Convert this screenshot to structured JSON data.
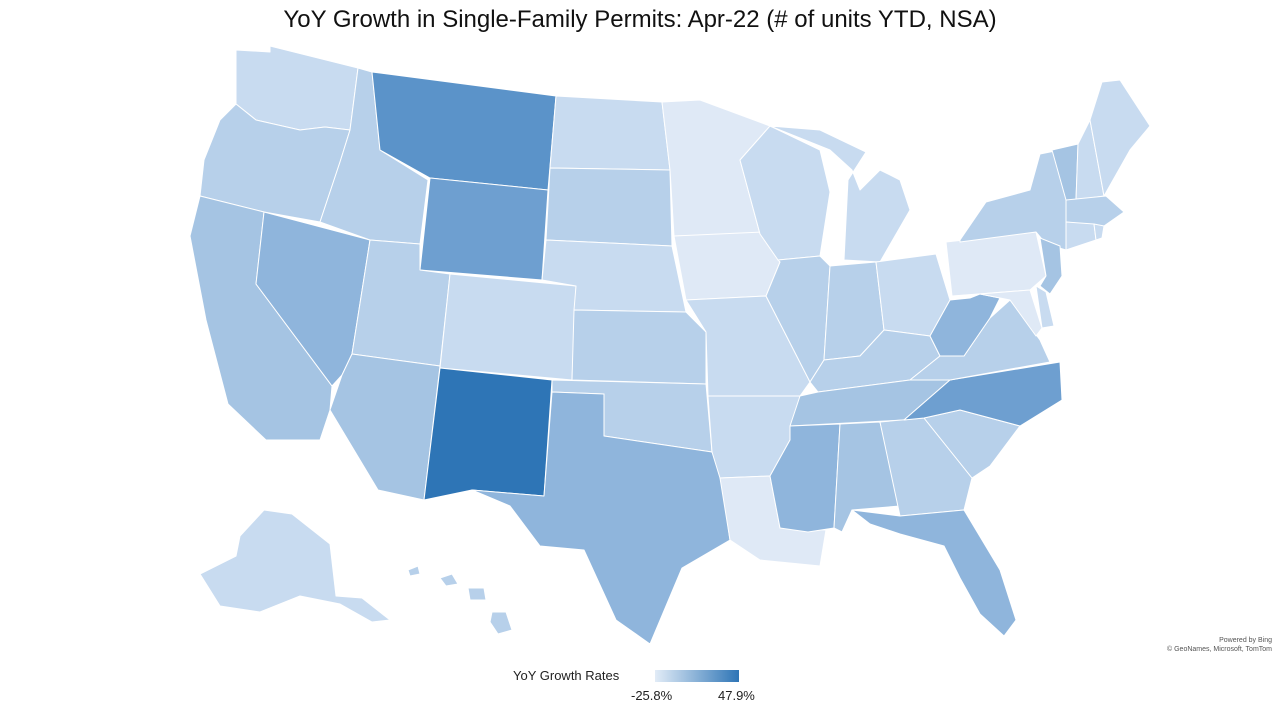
{
  "title": "YoY Growth in Single-Family Permits: Apr-22 (# of units YTD, NSA)",
  "attribution": {
    "line1": "Powered by Bing",
    "line2": "© GeoNames, Microsoft, TomTom"
  },
  "legend": {
    "title": "YoY Growth Rates",
    "min_label": "-25.8%",
    "max_label": "47.9%",
    "color_low": "#e2ecf7",
    "color_high": "#2e75b6"
  },
  "colors": {
    "c1": "#dfe9f6",
    "c2": "#c8dbf0",
    "c3": "#b7d0ea",
    "c4": "#a5c4e3",
    "c5": "#8fb5dc",
    "c6": "#6e9fd0",
    "c7": "#5b93c9",
    "c8": "#2e75b6"
  },
  "states": [
    {
      "id": "WA",
      "shade": "c2"
    },
    {
      "id": "OR",
      "shade": "c3"
    },
    {
      "id": "CA",
      "shade": "c4"
    },
    {
      "id": "NV",
      "shade": "c5"
    },
    {
      "id": "ID",
      "shade": "c3"
    },
    {
      "id": "MT",
      "shade": "c7"
    },
    {
      "id": "WY",
      "shade": "c6"
    },
    {
      "id": "UT",
      "shade": "c3"
    },
    {
      "id": "AZ",
      "shade": "c4"
    },
    {
      "id": "CO",
      "shade": "c2"
    },
    {
      "id": "NM",
      "shade": "c8"
    },
    {
      "id": "ND",
      "shade": "c2"
    },
    {
      "id": "SD",
      "shade": "c3"
    },
    {
      "id": "NE",
      "shade": "c2"
    },
    {
      "id": "KS",
      "shade": "c3"
    },
    {
      "id": "OK",
      "shade": "c3"
    },
    {
      "id": "TX",
      "shade": "c5"
    },
    {
      "id": "MN",
      "shade": "c1"
    },
    {
      "id": "IA",
      "shade": "c1"
    },
    {
      "id": "MO",
      "shade": "c2"
    },
    {
      "id": "AR",
      "shade": "c2"
    },
    {
      "id": "LA",
      "shade": "c1"
    },
    {
      "id": "WI",
      "shade": "c2"
    },
    {
      "id": "IL",
      "shade": "c3"
    },
    {
      "id": "MI",
      "shade": "c2"
    },
    {
      "id": "IN",
      "shade": "c3"
    },
    {
      "id": "OH",
      "shade": "c2"
    },
    {
      "id": "KY",
      "shade": "c3"
    },
    {
      "id": "TN",
      "shade": "c4"
    },
    {
      "id": "MS",
      "shade": "c5"
    },
    {
      "id": "AL",
      "shade": "c4"
    },
    {
      "id": "GA",
      "shade": "c3"
    },
    {
      "id": "FL",
      "shade": "c5"
    },
    {
      "id": "SC",
      "shade": "c3"
    },
    {
      "id": "NC",
      "shade": "c6"
    },
    {
      "id": "VA",
      "shade": "c3"
    },
    {
      "id": "WV",
      "shade": "c5"
    },
    {
      "id": "PA",
      "shade": "c1"
    },
    {
      "id": "NY",
      "shade": "c3"
    },
    {
      "id": "NJ",
      "shade": "c4"
    },
    {
      "id": "DE",
      "shade": "c2"
    },
    {
      "id": "MD",
      "shade": "c1"
    },
    {
      "id": "VT",
      "shade": "c4"
    },
    {
      "id": "NH",
      "shade": "c2"
    },
    {
      "id": "ME",
      "shade": "c2"
    },
    {
      "id": "MA",
      "shade": "c3"
    },
    {
      "id": "CT",
      "shade": "c2"
    },
    {
      "id": "RI",
      "shade": "c2"
    },
    {
      "id": "AK",
      "shade": "c2"
    },
    {
      "id": "HI",
      "shade": "c3"
    }
  ]
}
